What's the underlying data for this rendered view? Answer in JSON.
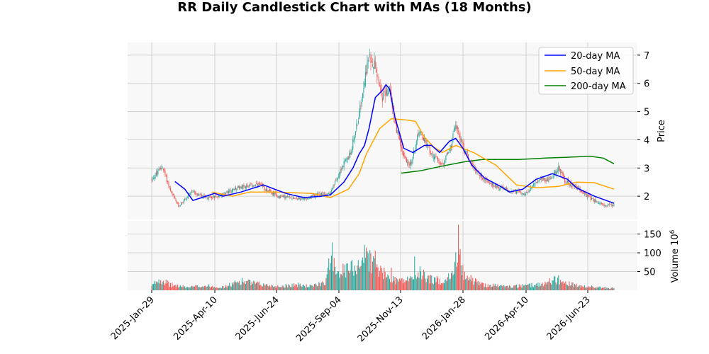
{
  "chart_data": {
    "type": "candlestick",
    "title": "RR Daily Candlestick Chart with MAs (18 Months)",
    "x_ticks": [
      "2025-Jan-29",
      "2025-Apr-10",
      "2025-Jun-24",
      "2025-Sep-04",
      "2025-Nov-13",
      "2026-Jan-28",
      "2026-Apr-10",
      "2026-Jun-23"
    ],
    "price_panel": {
      "ylabel": "Price",
      "ylim": [
        1.1,
        7.7
      ],
      "y_ticks": [
        2,
        3,
        4,
        5,
        6,
        7
      ],
      "grid": true,
      "up_color": "#26a69a",
      "down_color": "#ef5350",
      "price_path": [
        [
          0,
          2.6
        ],
        [
          12,
          3.05
        ],
        [
          22,
          2.1
        ],
        [
          30,
          1.65
        ],
        [
          45,
          2.15
        ],
        [
          60,
          1.95
        ],
        [
          75,
          2.0
        ],
        [
          100,
          2.35
        ],
        [
          120,
          2.4
        ],
        [
          140,
          2.0
        ],
        [
          170,
          1.9
        ],
        [
          185,
          2.05
        ],
        [
          200,
          2.1
        ],
        [
          212,
          3.0
        ],
        [
          222,
          3.5
        ],
        [
          232,
          4.9
        ],
        [
          238,
          6.2
        ],
        [
          243,
          6.9
        ],
        [
          250,
          6.7
        ],
        [
          258,
          5.5
        ],
        [
          266,
          5.8
        ],
        [
          274,
          4.3
        ],
        [
          282,
          3.4
        ],
        [
          290,
          3.1
        ],
        [
          298,
          4.3
        ],
        [
          304,
          4.0
        ],
        [
          315,
          3.4
        ],
        [
          325,
          3.1
        ],
        [
          335,
          3.8
        ],
        [
          340,
          4.6
        ],
        [
          345,
          4.0
        ],
        [
          355,
          3.3
        ],
        [
          365,
          2.8
        ],
        [
          380,
          2.4
        ],
        [
          400,
          2.2
        ],
        [
          420,
          2.1
        ],
        [
          430,
          2.55
        ],
        [
          445,
          2.6
        ],
        [
          455,
          3.0
        ],
        [
          462,
          2.55
        ],
        [
          475,
          2.3
        ],
        [
          490,
          1.95
        ],
        [
          500,
          1.75
        ],
        [
          510,
          1.65
        ],
        [
          517,
          1.7
        ]
      ],
      "ma_20": [
        [
          26,
          2.52
        ],
        [
          37,
          2.25
        ],
        [
          46,
          1.85
        ],
        [
          56,
          1.95
        ],
        [
          70,
          2.1
        ],
        [
          80,
          2.0
        ],
        [
          100,
          2.15
        ],
        [
          125,
          2.4
        ],
        [
          150,
          2.1
        ],
        [
          170,
          1.95
        ],
        [
          190,
          2.0
        ],
        [
          200,
          2.05
        ],
        [
          215,
          2.5
        ],
        [
          225,
          3.0
        ],
        [
          232,
          3.5
        ],
        [
          238,
          3.8
        ],
        [
          243,
          4.4
        ],
        [
          250,
          5.5
        ],
        [
          258,
          5.75
        ],
        [
          262,
          5.95
        ],
        [
          266,
          5.8
        ],
        [
          272,
          4.8
        ],
        [
          282,
          3.7
        ],
        [
          292,
          3.55
        ],
        [
          305,
          3.8
        ],
        [
          313,
          3.8
        ],
        [
          322,
          3.55
        ],
        [
          333,
          3.95
        ],
        [
          340,
          4.05
        ],
        [
          348,
          3.7
        ],
        [
          358,
          3.1
        ],
        [
          372,
          2.65
        ],
        [
          390,
          2.35
        ],
        [
          400,
          2.15
        ],
        [
          415,
          2.25
        ],
        [
          430,
          2.6
        ],
        [
          448,
          2.8
        ],
        [
          465,
          2.6
        ],
        [
          475,
          2.3
        ],
        [
          495,
          2.0
        ],
        [
          517,
          1.75
        ]
      ],
      "ma_50": [
        [
          67,
          2.15
        ],
        [
          90,
          2.0
        ],
        [
          110,
          2.15
        ],
        [
          140,
          2.15
        ],
        [
          180,
          2.1
        ],
        [
          200,
          1.95
        ],
        [
          220,
          2.25
        ],
        [
          232,
          2.8
        ],
        [
          240,
          3.5
        ],
        [
          255,
          4.4
        ],
        [
          268,
          4.75
        ],
        [
          285,
          4.7
        ],
        [
          295,
          4.65
        ],
        [
          305,
          4.1
        ],
        [
          315,
          3.75
        ],
        [
          325,
          3.55
        ],
        [
          340,
          3.8
        ],
        [
          360,
          3.55
        ],
        [
          385,
          3.1
        ],
        [
          408,
          2.4
        ],
        [
          430,
          2.3
        ],
        [
          455,
          2.35
        ],
        [
          475,
          2.5
        ],
        [
          495,
          2.48
        ],
        [
          517,
          2.25
        ]
      ],
      "ma_200": [
        [
          279,
          2.82
        ],
        [
          300,
          2.9
        ],
        [
          330,
          3.1
        ],
        [
          350,
          3.22
        ],
        [
          370,
          3.3
        ],
        [
          410,
          3.3
        ],
        [
          440,
          3.35
        ],
        [
          465,
          3.38
        ],
        [
          490,
          3.42
        ],
        [
          505,
          3.35
        ],
        [
          517,
          3.15
        ]
      ],
      "legend": {
        "position": "upper right",
        "entries": [
          {
            "label": "20-day MA",
            "color": "#0000ff"
          },
          {
            "label": "50-day MA",
            "color": "#ffa500"
          },
          {
            "label": "200-day MA",
            "color": "#008000"
          }
        ]
      }
    },
    "volume_panel": {
      "ylabel": "Volume",
      "multiplier": "10",
      "multiplier_exp": "6",
      "ylim": [
        0,
        185
      ],
      "y_ticks": [
        50,
        100,
        150
      ],
      "grid": true,
      "volume_path": [
        [
          0,
          10
        ],
        [
          5,
          25
        ],
        [
          10,
          30
        ],
        [
          20,
          15
        ],
        [
          40,
          8
        ],
        [
          60,
          12
        ],
        [
          80,
          8
        ],
        [
          100,
          25
        ],
        [
          115,
          18
        ],
        [
          140,
          10
        ],
        [
          160,
          15
        ],
        [
          180,
          10
        ],
        [
          195,
          25
        ],
        [
          202,
          110
        ],
        [
          205,
          60
        ],
        [
          215,
          50
        ],
        [
          225,
          60
        ],
        [
          232,
          75
        ],
        [
          240,
          95
        ],
        [
          248,
          70
        ],
        [
          258,
          45
        ],
        [
          268,
          30
        ],
        [
          280,
          25
        ],
        [
          290,
          30
        ],
        [
          300,
          45
        ],
        [
          312,
          30
        ],
        [
          322,
          25
        ],
        [
          335,
          35
        ],
        [
          344,
          100
        ],
        [
          348,
          50
        ],
        [
          356,
          30
        ],
        [
          370,
          15
        ],
        [
          400,
          10
        ],
        [
          420,
          12
        ],
        [
          440,
          18
        ],
        [
          450,
          30
        ],
        [
          460,
          20
        ],
        [
          480,
          10
        ],
        [
          500,
          8
        ],
        [
          517,
          5
        ]
      ],
      "spikes": [
        [
          202,
          128
        ],
        [
          241,
          104
        ],
        [
          250,
          106
        ],
        [
          268,
          60
        ],
        [
          294,
          90
        ],
        [
          343,
          175
        ],
        [
          345,
          110
        ],
        [
          455,
          40
        ]
      ]
    }
  }
}
